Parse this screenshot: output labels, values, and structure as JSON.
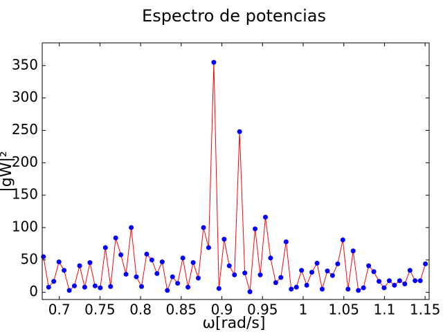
{
  "chart_data": {
    "type": "line",
    "title": "Espectro de potencias",
    "xlabel": "ω[rad/s]",
    "ylabel": "|gW|²",
    "x": [
      0.6805,
      0.6869,
      0.6932,
      0.6996,
      0.7059,
      0.7123,
      0.7186,
      0.725,
      0.7313,
      0.7377,
      0.744,
      0.7504,
      0.7567,
      0.7631,
      0.7694,
      0.7758,
      0.7821,
      0.7885,
      0.7948,
      0.8012,
      0.8075,
      0.8139,
      0.8202,
      0.8266,
      0.8329,
      0.8393,
      0.8456,
      0.852,
      0.8583,
      0.8647,
      0.871,
      0.8774,
      0.8837,
      0.8901,
      0.8964,
      0.9028,
      0.9091,
      0.9155,
      0.9218,
      0.9282,
      0.9345,
      0.9409,
      0.9472,
      0.9536,
      0.9599,
      0.9663,
      0.9726,
      0.979,
      0.9853,
      0.9917,
      0.998,
      1.0044,
      1.0107,
      1.0171,
      1.0234,
      1.0298,
      1.0361,
      1.0425,
      1.0488,
      1.0552,
      1.0615,
      1.0679,
      1.0742,
      1.0806,
      1.0869,
      1.0933,
      1.0996,
      1.106,
      1.1123,
      1.1187,
      1.125,
      1.1314,
      1.1377,
      1.1441,
      1.1504
    ],
    "series": [
      {
        "line_color": "#ff0000",
        "marker_color": "#0000ff",
        "values": [
          55,
          8,
          17,
          47,
          34,
          3,
          10,
          41,
          8,
          46,
          10,
          7,
          69,
          9,
          84,
          58,
          28,
          100,
          24,
          9,
          59,
          50,
          29,
          47,
          3,
          24,
          14,
          53,
          8,
          46,
          22,
          100,
          69,
          355,
          6,
          82,
          41,
          27,
          248,
          30,
          1,
          98,
          27,
          116,
          53,
          15,
          23,
          78,
          5,
          8,
          34,
          11,
          31,
          45,
          5,
          33,
          26,
          44,
          81,
          5,
          64,
          3,
          7,
          41,
          32,
          17,
          7,
          18,
          11,
          18,
          13,
          34,
          18,
          18,
          44
        ]
      }
    ],
    "xlim": [
      0.679,
      1.155
    ],
    "ylim": [
      -11,
      385
    ],
    "xticks": [
      0.7,
      0.75,
      0.8,
      0.85,
      0.9,
      0.95,
      1,
      1.05,
      1.1,
      1.15
    ],
    "yticks": [
      0,
      50,
      100,
      150,
      200,
      250,
      300,
      350
    ]
  }
}
